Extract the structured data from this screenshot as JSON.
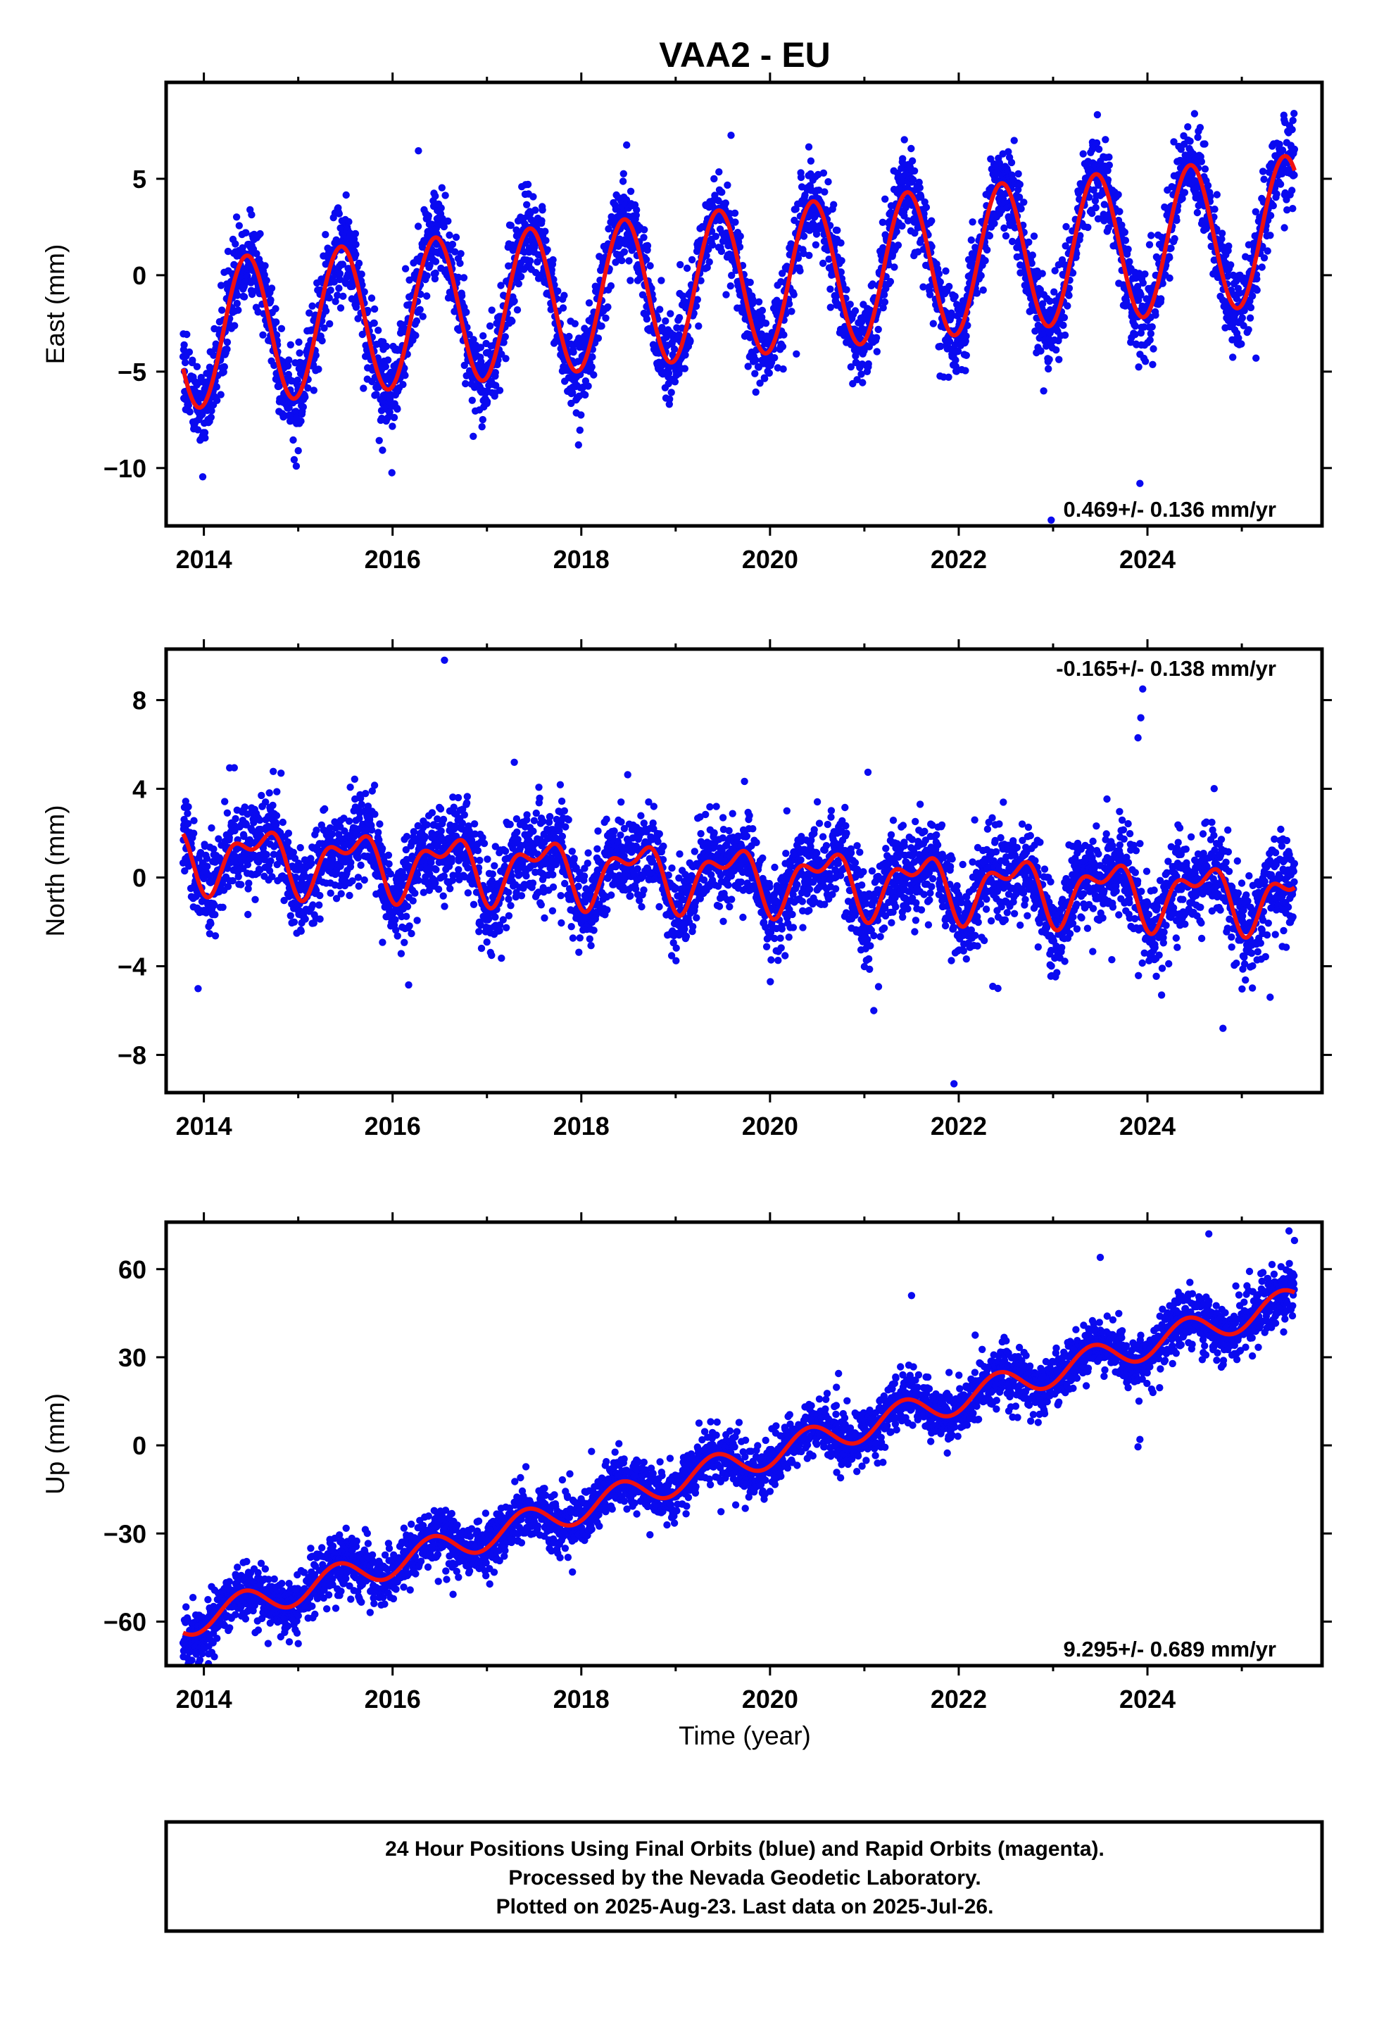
{
  "title": "VAA2 - EU",
  "x_label": "Time (year)",
  "caption": [
    "24 Hour Positions Using Final Orbits (blue) and Rapid Orbits (magenta).",
    "Processed by the Nevada Geodetic Laboratory.",
    "Plotted on 2025-Aug-23. Last data on 2025-Jul-26."
  ],
  "colors": {
    "data_points": "#0a0af0",
    "model_fit": "#f01010",
    "frame": "#000000"
  },
  "chart_data": [
    {
      "type": "scatter",
      "name": "east",
      "ylabel": "East (mm)",
      "xlim": [
        2013.6,
        2025.85
      ],
      "ylim": [
        -13,
        10
      ],
      "x_ticks": [
        2014,
        2016,
        2018,
        2020,
        2022,
        2024
      ],
      "y_ticks": [
        5,
        0,
        -5,
        -10
      ],
      "y_tick_labels": [
        "5",
        "0",
        "−10"
      ],
      "y_tick_label_values": [
        5,
        0,
        -10
      ],
      "y_tick_label_minus5": "−5",
      "rate_text": "0.469+/- 0.136 mm/yr",
      "rate_position": "bottom-right",
      "model": {
        "t0": 2019.7,
        "offset": -0.35,
        "slope": 0.469,
        "annual_sin": 1.05,
        "annual_cos": -3.68,
        "semi_sin": 0,
        "semi_cos": 0
      },
      "scatter_sigma": 1.1,
      "outliers": [
        [
          2022.98,
          -12.7
        ],
        [
          2023.92,
          -10.8
        ],
        [
          2015.0,
          -9.1
        ],
        [
          2017.97,
          -8.8
        ],
        [
          2022.9,
          -6.0
        ],
        [
          2025.15,
          -4.3
        ]
      ],
      "series": [
        {
          "name": "",
          "values": []
        }
      ]
    },
    {
      "type": "scatter",
      "name": "north",
      "ylabel": "North (mm)",
      "xlim": [
        2013.6,
        2025.85
      ],
      "ylim": [
        -9.7,
        10.3
      ],
      "x_ticks": [
        2014,
        2016,
        2018,
        2020,
        2022,
        2024
      ],
      "y_ticks": [
        8,
        4,
        0,
        -4,
        -8
      ],
      "y_tick_labels": [
        "8",
        "4",
        "0",
        "−4",
        "−8"
      ],
      "y_tick_label_values": [
        8,
        4,
        0,
        -4,
        -8
      ],
      "rate_text": "-0.165+/- 0.138 mm/yr",
      "rate_position": "top-right",
      "model": {
        "t0": 2019.7,
        "offset": 0.0,
        "slope": -0.165,
        "annual_sin": -0.5,
        "annual_cos": -1.05,
        "semi_sin": -0.25,
        "semi_cos": -0.65
      },
      "scatter_sigma": 1.0,
      "outliers": [
        [
          2016.55,
          9.8
        ],
        [
          2021.95,
          -9.3
        ],
        [
          2024.8,
          -6.8
        ],
        [
          2023.95,
          8.5
        ],
        [
          2023.93,
          7.2
        ],
        [
          2023.9,
          6.3
        ],
        [
          2021.1,
          -6.0
        ],
        [
          2024.15,
          -5.3
        ],
        [
          2025.3,
          -5.4
        ]
      ],
      "series": [
        {
          "name": "",
          "values": []
        }
      ]
    },
    {
      "type": "scatter",
      "name": "up",
      "ylabel": "Up (mm)",
      "xlabel": "Time (year)",
      "xlim": [
        2013.6,
        2025.85
      ],
      "ylim": [
        -75,
        76
      ],
      "x_ticks": [
        2014,
        2016,
        2018,
        2020,
        2022,
        2024
      ],
      "y_ticks": [
        60,
        30,
        0,
        -30,
        -60
      ],
      "y_tick_labels": [
        "60",
        "30",
        "0",
        "−30",
        "−60"
      ],
      "y_tick_label_values": [
        60,
        30,
        0,
        -30,
        -60
      ],
      "rate_text": "9.295+/- 0.689 mm/yr",
      "rate_position": "bottom-right",
      "model": {
        "t0": 2019.7,
        "offset": -5.5,
        "slope": 9.295,
        "annual_sin": 2.5,
        "annual_cos": -4.3,
        "semi_sin": 0,
        "semi_cos": 0
      },
      "scatter_sigma": 4.8,
      "outliers": [
        [
          2023.92,
          2.0
        ],
        [
          2023.9,
          -0.5
        ],
        [
          2015.0,
          -67.5
        ],
        [
          2014.05,
          -71.0
        ],
        [
          2021.5,
          51.0
        ],
        [
          2023.5,
          64.0
        ],
        [
          2024.65,
          72.0
        ],
        [
          2025.5,
          73.0
        ]
      ],
      "series": [
        {
          "name": "",
          "values": []
        }
      ]
    }
  ]
}
